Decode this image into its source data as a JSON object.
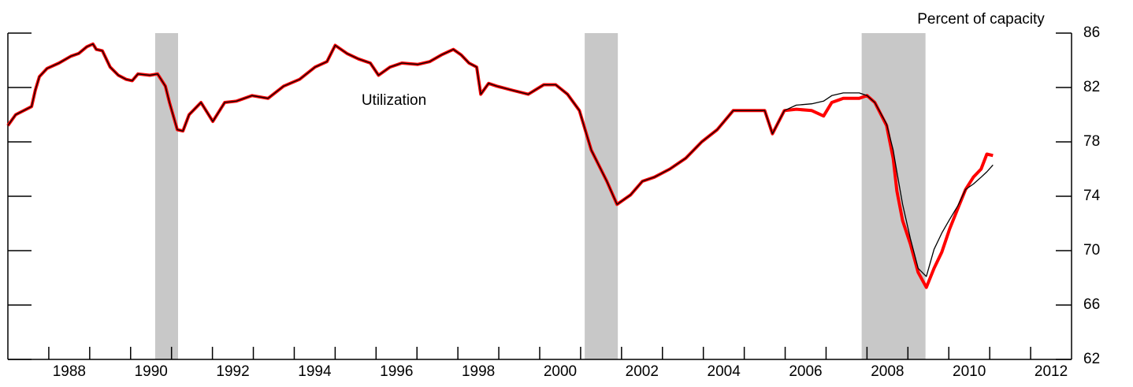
{
  "chart_data": {
    "type": "line",
    "y_axis_label": "Percent of capacity",
    "annotation": "Utilization",
    "x": [
      1987.0,
      1987.19,
      1987.58,
      1987.67,
      1987.77,
      1987.96,
      1988.25,
      1988.54,
      1988.73,
      1988.93,
      1989.08,
      1989.16,
      1989.31,
      1989.5,
      1989.7,
      1989.89,
      1990.04,
      1990.18,
      1990.47,
      1990.66,
      1990.85,
      1990.95,
      1991.14,
      1991.28,
      1991.43,
      1991.72,
      1992.01,
      1992.3,
      1992.59,
      1992.97,
      1993.36,
      1993.74,
      1994.13,
      1994.51,
      1994.8,
      1995.0,
      1995.29,
      1995.57,
      1995.86,
      1996.06,
      1996.34,
      1996.63,
      1997.02,
      1997.31,
      1997.6,
      1997.89,
      1998.08,
      1998.27,
      1998.46,
      1998.56,
      1998.75,
      1998.95,
      1999.33,
      1999.72,
      2000.1,
      2000.39,
      2000.68,
      2000.97,
      2001.26,
      2001.64,
      2001.89,
      2002.22,
      2002.51,
      2002.8,
      2003.18,
      2003.57,
      2003.96,
      2004.34,
      2004.73,
      2005.11,
      2005.5,
      2005.69,
      2005.98,
      2006.27,
      2006.65,
      2006.94,
      2007.14,
      2007.42,
      2007.81,
      2008.0,
      2008.19,
      2008.48,
      2008.64,
      2008.73,
      2008.87,
      2009.06,
      2009.25,
      2009.45,
      2009.64,
      2009.83,
      2010.02,
      2010.22,
      2010.41,
      2010.6,
      2010.79,
      2010.93,
      2011.08
    ],
    "series": [
      {
        "color": "#ff0000",
        "values": [
          79.2,
          80.0,
          80.6,
          81.8,
          82.8,
          83.4,
          83.8,
          84.3,
          84.5,
          85.0,
          85.2,
          84.8,
          84.7,
          83.5,
          82.9,
          82.6,
          82.5,
          83.0,
          82.9,
          83.0,
          82.1,
          80.9,
          78.9,
          78.8,
          80.0,
          80.9,
          79.5,
          80.9,
          81.0,
          81.4,
          81.2,
          82.1,
          82.6,
          83.5,
          83.9,
          85.1,
          84.5,
          84.1,
          83.8,
          82.9,
          83.5,
          83.8,
          83.7,
          83.9,
          84.4,
          84.8,
          84.4,
          83.8,
          83.5,
          81.5,
          82.3,
          82.1,
          81.8,
          81.5,
          82.2,
          82.2,
          81.5,
          80.3,
          77.4,
          75.1,
          73.4,
          74.1,
          75.1,
          75.4,
          76.0,
          76.8,
          78.0,
          78.9,
          80.3,
          80.3,
          80.3,
          78.6,
          80.3,
          80.4,
          80.3,
          79.9,
          80.9,
          81.2,
          81.2,
          81.4,
          80.9,
          79.2,
          76.8,
          74.4,
          72.2,
          70.5,
          68.4,
          67.3,
          68.7,
          69.9,
          71.6,
          73.1,
          74.5,
          75.4,
          76.0,
          77.1,
          77.0
        ]
      },
      {
        "color": "#000000",
        "values": [
          79.2,
          80.0,
          80.6,
          81.8,
          82.8,
          83.4,
          83.8,
          84.3,
          84.5,
          85.0,
          85.2,
          84.8,
          84.7,
          83.5,
          82.9,
          82.6,
          82.5,
          83.0,
          82.9,
          83.0,
          82.1,
          80.9,
          78.9,
          78.8,
          80.0,
          80.9,
          79.5,
          80.9,
          81.0,
          81.4,
          81.2,
          82.1,
          82.6,
          83.5,
          83.9,
          85.1,
          84.5,
          84.1,
          83.8,
          82.9,
          83.5,
          83.8,
          83.7,
          83.9,
          84.4,
          84.8,
          84.4,
          83.8,
          83.5,
          81.5,
          82.3,
          82.1,
          81.8,
          81.5,
          82.2,
          82.2,
          81.5,
          80.3,
          77.4,
          75.1,
          73.4,
          74.1,
          75.1,
          75.4,
          76.0,
          76.8,
          78.0,
          78.9,
          80.3,
          80.3,
          80.3,
          78.6,
          80.3,
          80.7,
          80.8,
          81.0,
          81.4,
          81.6,
          81.6,
          81.4,
          80.9,
          79.3,
          77.4,
          75.8,
          73.4,
          70.9,
          68.7,
          68.1,
          70.1,
          71.3,
          72.3,
          73.3,
          74.5,
          74.9,
          75.4,
          75.8,
          76.3
        ]
      }
    ],
    "recessions": [
      [
        1990.6,
        1991.16
      ],
      [
        2001.1,
        2001.91
      ],
      [
        2007.87,
        2009.43
      ]
    ],
    "recession_color": "#c8c8c8",
    "xlim": [
      1987,
      2013
    ],
    "xticks": [
      1988,
      1990,
      1992,
      1994,
      1996,
      1998,
      2000,
      2002,
      2004,
      2006,
      2008,
      2010,
      2012
    ],
    "xminor_ticks": [
      1989,
      1991,
      1993,
      1995,
      1997,
      1999,
      2001,
      2003,
      2005,
      2007,
      2009,
      2011
    ],
    "ylim": [
      62,
      86
    ],
    "yticks": [
      62,
      66,
      70,
      74,
      78,
      82,
      86
    ]
  }
}
